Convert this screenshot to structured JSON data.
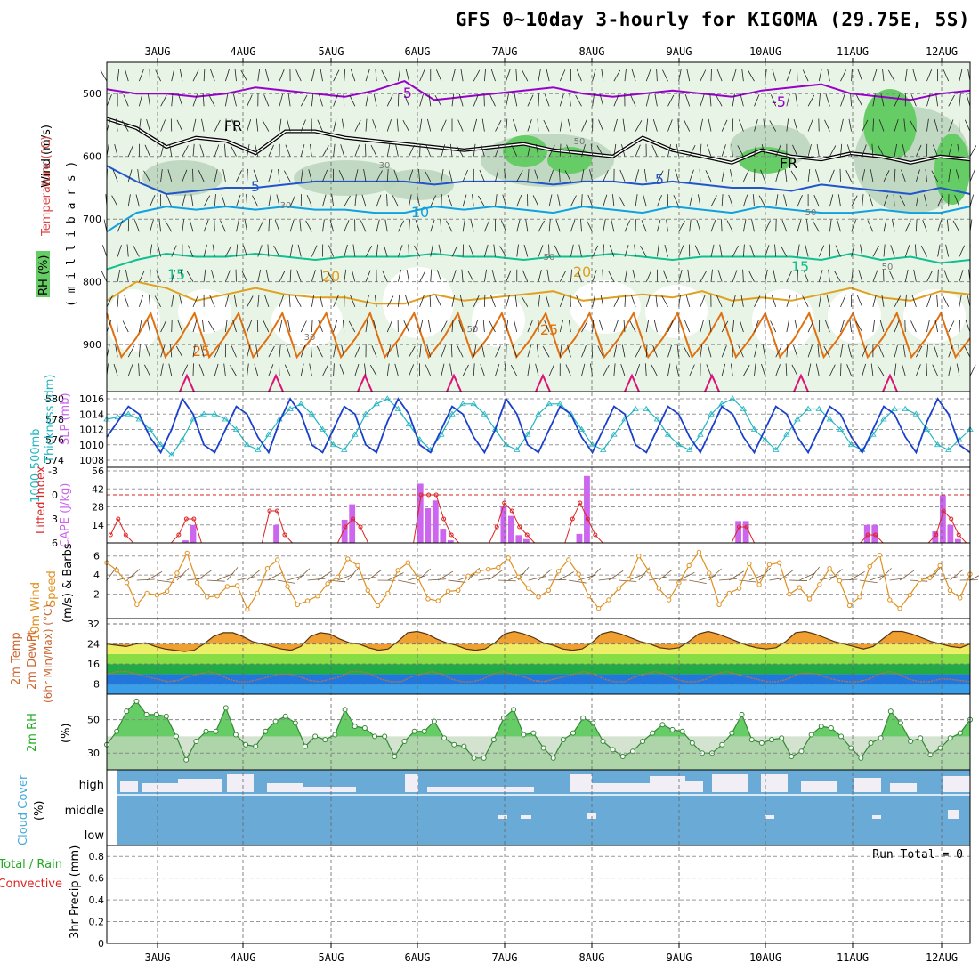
{
  "title": "GFS 0~10day 3-hourly for KIGOMA (29.75E, 5S)",
  "dates": [
    "3AUG",
    "4AUG",
    "5AUG",
    "6AUG",
    "7AUG",
    "8AUG",
    "9AUG",
    "10AUG",
    "11AUG",
    "12AUG"
  ],
  "colors": {
    "rh_light": "#e8f4e6",
    "rh_mid": "#bcd6bf",
    "rh_dark": "#9fb8a4",
    "rh_green": "#66cc66",
    "t_neg5": "#9900cc",
    "t_fr": "#000000",
    "t_5": "#2255cc",
    "t_10": "#11a0e0",
    "t_15": "#10c090",
    "t_20": "#e0a020",
    "t_25": "#e07010",
    "t_30": "#dd1177",
    "slp": "#1a3fcc",
    "thick": "#22b5c0",
    "cape": "#cc66ee",
    "li": "#dd2222",
    "wind": "#e09020",
    "barb": "#7a5c3a",
    "temp_fill": "#f0a030",
    "cloud": "#6aaad6",
    "precip_total": "#22aa22",
    "precip_conv": "#dd2222"
  },
  "chart_data": [
    {
      "type": "heatmap",
      "name_printed": "",
      "ylabel": "m i l l i b a r s",
      "legend": [
        "Wind (m/s)",
        "Temperature (°C)",
        "RH (%)"
      ],
      "yticks": [
        500,
        600,
        700,
        800,
        900
      ],
      "ylim": [
        450,
        975
      ],
      "contour_labels": [
        "-5",
        "FR",
        "5",
        "10",
        "15",
        "20",
        "25",
        "30",
        "50"
      ],
      "isotherms": [
        {
          "name": "-5",
          "level": [
            493,
            500,
            500,
            505,
            500,
            490,
            495,
            500,
            505,
            495,
            480,
            510,
            505,
            500,
            495,
            490,
            500,
            505,
            500,
            495,
            500,
            505,
            495,
            490,
            485,
            500,
            505,
            510,
            500,
            495
          ]
        },
        {
          "name": "FR",
          "level": [
            540,
            555,
            585,
            570,
            575,
            595,
            560,
            560,
            570,
            575,
            580,
            585,
            590,
            585,
            580,
            590,
            595,
            600,
            570,
            590,
            600,
            610,
            590,
            600,
            605,
            595,
            600,
            610,
            600,
            605
          ]
        },
        {
          "name": "5",
          "level": [
            615,
            640,
            660,
            655,
            650,
            650,
            645,
            640,
            640,
            640,
            640,
            645,
            640,
            640,
            640,
            645,
            640,
            640,
            645,
            640,
            645,
            650,
            650,
            655,
            645,
            650,
            655,
            660,
            650,
            660
          ]
        },
        {
          "name": "10",
          "level": [
            720,
            690,
            680,
            685,
            680,
            685,
            680,
            685,
            685,
            690,
            690,
            680,
            685,
            680,
            685,
            690,
            680,
            685,
            690,
            680,
            685,
            690,
            680,
            685,
            690,
            690,
            685,
            690,
            690,
            680
          ]
        },
        {
          "name": "15",
          "level": [
            780,
            765,
            755,
            760,
            760,
            755,
            760,
            765,
            760,
            760,
            760,
            755,
            760,
            760,
            765,
            760,
            760,
            755,
            760,
            765,
            760,
            760,
            760,
            760,
            765,
            755,
            765,
            760,
            770,
            765
          ]
        },
        {
          "name": "20",
          "level": [
            830,
            800,
            810,
            830,
            820,
            810,
            820,
            825,
            825,
            835,
            835,
            820,
            830,
            825,
            820,
            815,
            830,
            825,
            820,
            825,
            815,
            830,
            825,
            830,
            820,
            810,
            825,
            830,
            815,
            820
          ]
        }
      ]
    },
    {
      "type": "line",
      "series": [
        {
          "name": "SLP (mb)",
          "values": [
            1011,
            1013,
            1015,
            1014,
            1011,
            1009,
            1012,
            1016,
            1014,
            1010,
            1009,
            1012,
            1015,
            1014,
            1011,
            1009,
            1013,
            1016,
            1014,
            1010,
            1009,
            1012,
            1015,
            1014,
            1010,
            1009,
            1013,
            1016,
            1014,
            1010,
            1009,
            1012,
            1015,
            1014,
            1011,
            1009,
            1012,
            1016,
            1014,
            1010,
            1009,
            1012,
            1015,
            1014,
            1011,
            1009,
            1012,
            1015,
            1014,
            1010,
            1009,
            1012,
            1015,
            1014,
            1011,
            1009,
            1012,
            1015,
            1014,
            1011,
            1009,
            1012,
            1015,
            1014,
            1011,
            1009,
            1012,
            1015,
            1014,
            1011,
            1009,
            1012,
            1015,
            1014,
            1011,
            1009,
            1013,
            1016,
            1014,
            1010,
            1009
          ]
        },
        {
          "name": "1000-500mb Thickness (dm)",
          "values": [
            578,
            578.2,
            578.5,
            578,
            577,
            575.5,
            574.5,
            576,
            578,
            578.5,
            578.5,
            578,
            577,
            575.5,
            575,
            576.5,
            578,
            579,
            579.5,
            578.5,
            577,
            575.5,
            575,
            576.5,
            578.5,
            579.5,
            580,
            579,
            577.5,
            576,
            575,
            576.5,
            578.5,
            579.5,
            579.5,
            578.5,
            577,
            575.5,
            575,
            576.5,
            578.5,
            579.5,
            579.5,
            578.5,
            577,
            575.5,
            575,
            576.5,
            578,
            579,
            579,
            578,
            576.5,
            575.5,
            575,
            576.5,
            578.5,
            579.5,
            580,
            579,
            577,
            576,
            575,
            576.5,
            578,
            579,
            579,
            578,
            577,
            575.5,
            575,
            576.5,
            578,
            579,
            579,
            578.5,
            577,
            575.5,
            575,
            576,
            577
          ]
        }
      ],
      "yticks_slp": [
        1008,
        1010,
        1012,
        1014,
        1016
      ],
      "yticks_thick": [
        574,
        576,
        578,
        580
      ]
    },
    {
      "type": "bar",
      "series": [
        {
          "name": "CAPE (J/kg)",
          "values": [
            0,
            0,
            0,
            0,
            0,
            0,
            0,
            0,
            0,
            0,
            2,
            14,
            0,
            0,
            0,
            0,
            0,
            0,
            0,
            0,
            0,
            0,
            14,
            0,
            0,
            0,
            0,
            0,
            0,
            0,
            0,
            18,
            30,
            0,
            0,
            0,
            0,
            0,
            0,
            0,
            0,
            46,
            27,
            33,
            11,
            2,
            0,
            0,
            0,
            0,
            0,
            0,
            29,
            21,
            6,
            3,
            0,
            0,
            0,
            0,
            0,
            0,
            7,
            52,
            0,
            0,
            0,
            0,
            0,
            0,
            0,
            0,
            0,
            0,
            0,
            0,
            0,
            0,
            0,
            0,
            0,
            0,
            0,
            17,
            17,
            0,
            0,
            0,
            0,
            0,
            0,
            0,
            0,
            0,
            0,
            0,
            0,
            0,
            0,
            0,
            14,
            14,
            0,
            0,
            0,
            0,
            0,
            0,
            0,
            9,
            37,
            14,
            3,
            0
          ]
        },
        {
          "name": "Lifted Index",
          "values": [
            5,
            3,
            5,
            6,
            6,
            6,
            6,
            6,
            6,
            5,
            3,
            3,
            6,
            6,
            6,
            6,
            6,
            6,
            6,
            6,
            6,
            2,
            2,
            5,
            6,
            6,
            6,
            6,
            6,
            6,
            6,
            4,
            3,
            4,
            6,
            6,
            6,
            6,
            6,
            6,
            6,
            0,
            0,
            0,
            3,
            5,
            6,
            6,
            6,
            6,
            6,
            4,
            1,
            2,
            4,
            5,
            6,
            6,
            6,
            6,
            6,
            3,
            1,
            3,
            5,
            6,
            6,
            6,
            6,
            6,
            6,
            6,
            6,
            6,
            6,
            6,
            6,
            6,
            6,
            6,
            6,
            6,
            6,
            4,
            4,
            6,
            6,
            6,
            6,
            6,
            6,
            6,
            6,
            6,
            6,
            6,
            6,
            6,
            6,
            6,
            5,
            5,
            6,
            6,
            6,
            6,
            6,
            6,
            6,
            5,
            2,
            3,
            5,
            6
          ]
        }
      ],
      "yticks_cape": [
        14,
        28,
        42,
        56
      ],
      "yticks_li": [
        6,
        3,
        0,
        -3
      ]
    },
    {
      "type": "line",
      "series": [
        {
          "name": "10m Wind Speed",
          "values": [
            5.3,
            4.5,
            3.2,
            0.9,
            2.1,
            1.9,
            2.3,
            4.2,
            6.3,
            3.2,
            1.7,
            1.8,
            2.8,
            2.9,
            0.4,
            2.1,
            4.7,
            5.6,
            2.8,
            0.9,
            1.3,
            1.8,
            3.1,
            3.8,
            5.7,
            5.0,
            2.4,
            0.8,
            2.1,
            4.5,
            5.3,
            3.7,
            1.5,
            1.3,
            2.3,
            2.4,
            3.9,
            4.4,
            4.6,
            4.8,
            5.8,
            3.8,
            2.6,
            1.7,
            2.4,
            4.4,
            5.6,
            4.1,
            1.8,
            0.5,
            1.4,
            2.6,
            3.6,
            6.0,
            4.4,
            2.6,
            1.4,
            3.2,
            5.0,
            6.4,
            4.2,
            0.9,
            2.1,
            2.6,
            5.2,
            3.0,
            5.1,
            5.3,
            2.0,
            2.7,
            1.5,
            3.0,
            4.7,
            3.4,
            0.8,
            1.7,
            4.9,
            6.1,
            1.4,
            0.5,
            1.9,
            3.5,
            3.7,
            5.0,
            2.4,
            1.6,
            4.1
          ]
        }
      ],
      "yticks": [
        2,
        4,
        6
      ]
    },
    {
      "type": "area",
      "series": [
        {
          "name": "2m Temp",
          "values": [
            24,
            23.5,
            23,
            24,
            24.5,
            23,
            22,
            21.5,
            21,
            21.5,
            24,
            27,
            28.5,
            28.5,
            27,
            25,
            24,
            23,
            22,
            21.5,
            23,
            27,
            28.5,
            28,
            26,
            24.5,
            24,
            22.5,
            21.5,
            22,
            25,
            28.5,
            29,
            28,
            26,
            24.5,
            23.5,
            22,
            21.5,
            22,
            24.5,
            28,
            29,
            28,
            26.5,
            24.5,
            23.5,
            22,
            21.5,
            22,
            24.5,
            28,
            29,
            28,
            26.5,
            25,
            24,
            22.5,
            22,
            22.5,
            25,
            28,
            29,
            28,
            26.5,
            25,
            23.5,
            22.5,
            22,
            22.5,
            25,
            28.5,
            29,
            28,
            26.5,
            25,
            24,
            23,
            22,
            23,
            26,
            29,
            29,
            28,
            26.5,
            25,
            24,
            23,
            22.5,
            24
          ]
        },
        {
          "name": "2m DewPt",
          "values": [
            12,
            13,
            13,
            12,
            11,
            10,
            9,
            9.5,
            11,
            12,
            13,
            12,
            10,
            9,
            9,
            10,
            11,
            12,
            12,
            11,
            9.5,
            9,
            10,
            11,
            13,
            13,
            12,
            10,
            9,
            9,
            11,
            12,
            13,
            12,
            10,
            9,
            9,
            10,
            12,
            13,
            12,
            11,
            9.5,
            9,
            10,
            11,
            12,
            13,
            12,
            10,
            9,
            9,
            11,
            12,
            13,
            12,
            10,
            9,
            9,
            10,
            12,
            13,
            12,
            11,
            10,
            9,
            9,
            10,
            12,
            12.5,
            12,
            10.5,
            9.5,
            9,
            9,
            10,
            12,
            13,
            12,
            10,
            9,
            9,
            10,
            10,
            9.5,
            9
          ]
        }
      ],
      "yticks": [
        8,
        16,
        24,
        32
      ]
    },
    {
      "type": "area",
      "series": [
        {
          "name": "2m RH",
          "values": [
            35,
            43,
            55,
            61,
            53,
            53,
            52,
            40,
            26,
            37,
            43,
            43,
            57,
            41,
            35,
            34,
            43,
            49,
            52,
            48,
            34,
            40,
            38,
            41,
            56,
            46,
            45,
            40,
            40,
            28,
            37,
            43,
            43,
            49,
            39,
            35,
            34,
            27,
            27,
            38,
            51,
            56,
            41,
            42,
            33,
            27,
            38,
            42,
            51,
            48,
            37,
            32,
            28,
            31,
            37,
            42,
            47,
            44,
            43,
            36,
            30,
            30,
            35,
            42,
            53,
            38,
            36,
            38,
            39,
            28,
            31,
            41,
            46,
            45,
            40,
            33,
            27,
            36,
            39,
            55,
            48,
            37,
            39,
            29,
            33,
            39,
            42,
            50
          ]
        }
      ],
      "yticks": [
        30,
        50
      ]
    },
    {
      "type": "heatmap",
      "rows": [
        "high",
        "middle",
        "low"
      ],
      "ylabel": "(%)",
      "legend": [
        "Cloud Cover"
      ]
    },
    {
      "type": "bar",
      "legend": [
        "Total / Rain",
        "Convective"
      ],
      "ylabel": "3hr Precip (mm)",
      "yticks": [
        0,
        0.2,
        0.4,
        0.6,
        0.8
      ],
      "ylim": [
        0,
        0.9
      ],
      "annotation": "Run Total = 0",
      "values": []
    }
  ],
  "panel_labels": {
    "p1_wind": "Wind (m/s)",
    "p1_temp": "Temperature (°C)",
    "p1_rh": "RH (%)",
    "p1_mb": "( m i l l i b a r s )",
    "p2_thick1": "1000-500mb",
    "p2_thick2": "Thickness (dm)",
    "p2_slp": "SLP (mb)",
    "p3_li": "Lifted Index",
    "p3_cape": "CAPE (J/kg)",
    "p4_1": "10m Wind",
    "p4_2": "Speed",
    "p4_3": "(m/s) & Barbs",
    "p5_1": "2m Temp",
    "p5_2": "2m DewPt",
    "p5_3": "(6hr Min/Max) (°C)",
    "p6_1": "2m RH",
    "p6_2": "(%)",
    "p7_1": "Cloud Cover",
    "p7_2": "(%)",
    "p7_high": "high",
    "p7_middle": "middle",
    "p7_low": "low",
    "p8_1": "Total / Rain",
    "p8_2": "Convective",
    "p8_3": "3hr Precip (mm)",
    "p8_run": "Run Total = 0"
  }
}
